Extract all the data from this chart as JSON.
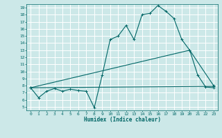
{
  "xlabel": "Humidex (Indice chaleur)",
  "bg_color": "#cce8e8",
  "grid_color": "#ffffff",
  "line_color": "#006666",
  "xlim": [
    -0.5,
    23.5
  ],
  "ylim": [
    4.5,
    19.5
  ],
  "xticks": [
    0,
    1,
    2,
    3,
    4,
    5,
    6,
    7,
    8,
    9,
    10,
    11,
    12,
    13,
    14,
    15,
    16,
    17,
    18,
    19,
    20,
    21,
    22,
    23
  ],
  "yticks": [
    5,
    6,
    7,
    8,
    9,
    10,
    11,
    12,
    13,
    14,
    15,
    16,
    17,
    18,
    19
  ],
  "curve1_x": [
    0,
    1,
    2,
    3,
    4,
    5,
    6,
    7,
    8,
    9,
    10,
    11,
    12,
    13,
    14,
    15,
    16,
    17,
    18,
    19,
    20,
    21,
    22,
    23
  ],
  "curve1_y": [
    7.7,
    6.3,
    7.2,
    7.6,
    7.2,
    7.5,
    7.3,
    7.2,
    4.9,
    9.5,
    14.5,
    15.0,
    16.5,
    14.5,
    18.0,
    18.2,
    19.3,
    18.5,
    17.5,
    14.5,
    13.0,
    9.5,
    7.8,
    7.7
  ],
  "curve2_x": [
    0,
    23
  ],
  "curve2_y": [
    7.7,
    7.9
  ],
  "curve3_x": [
    0,
    20,
    23
  ],
  "curve3_y": [
    7.7,
    13.0,
    8.0
  ],
  "marker": "+"
}
